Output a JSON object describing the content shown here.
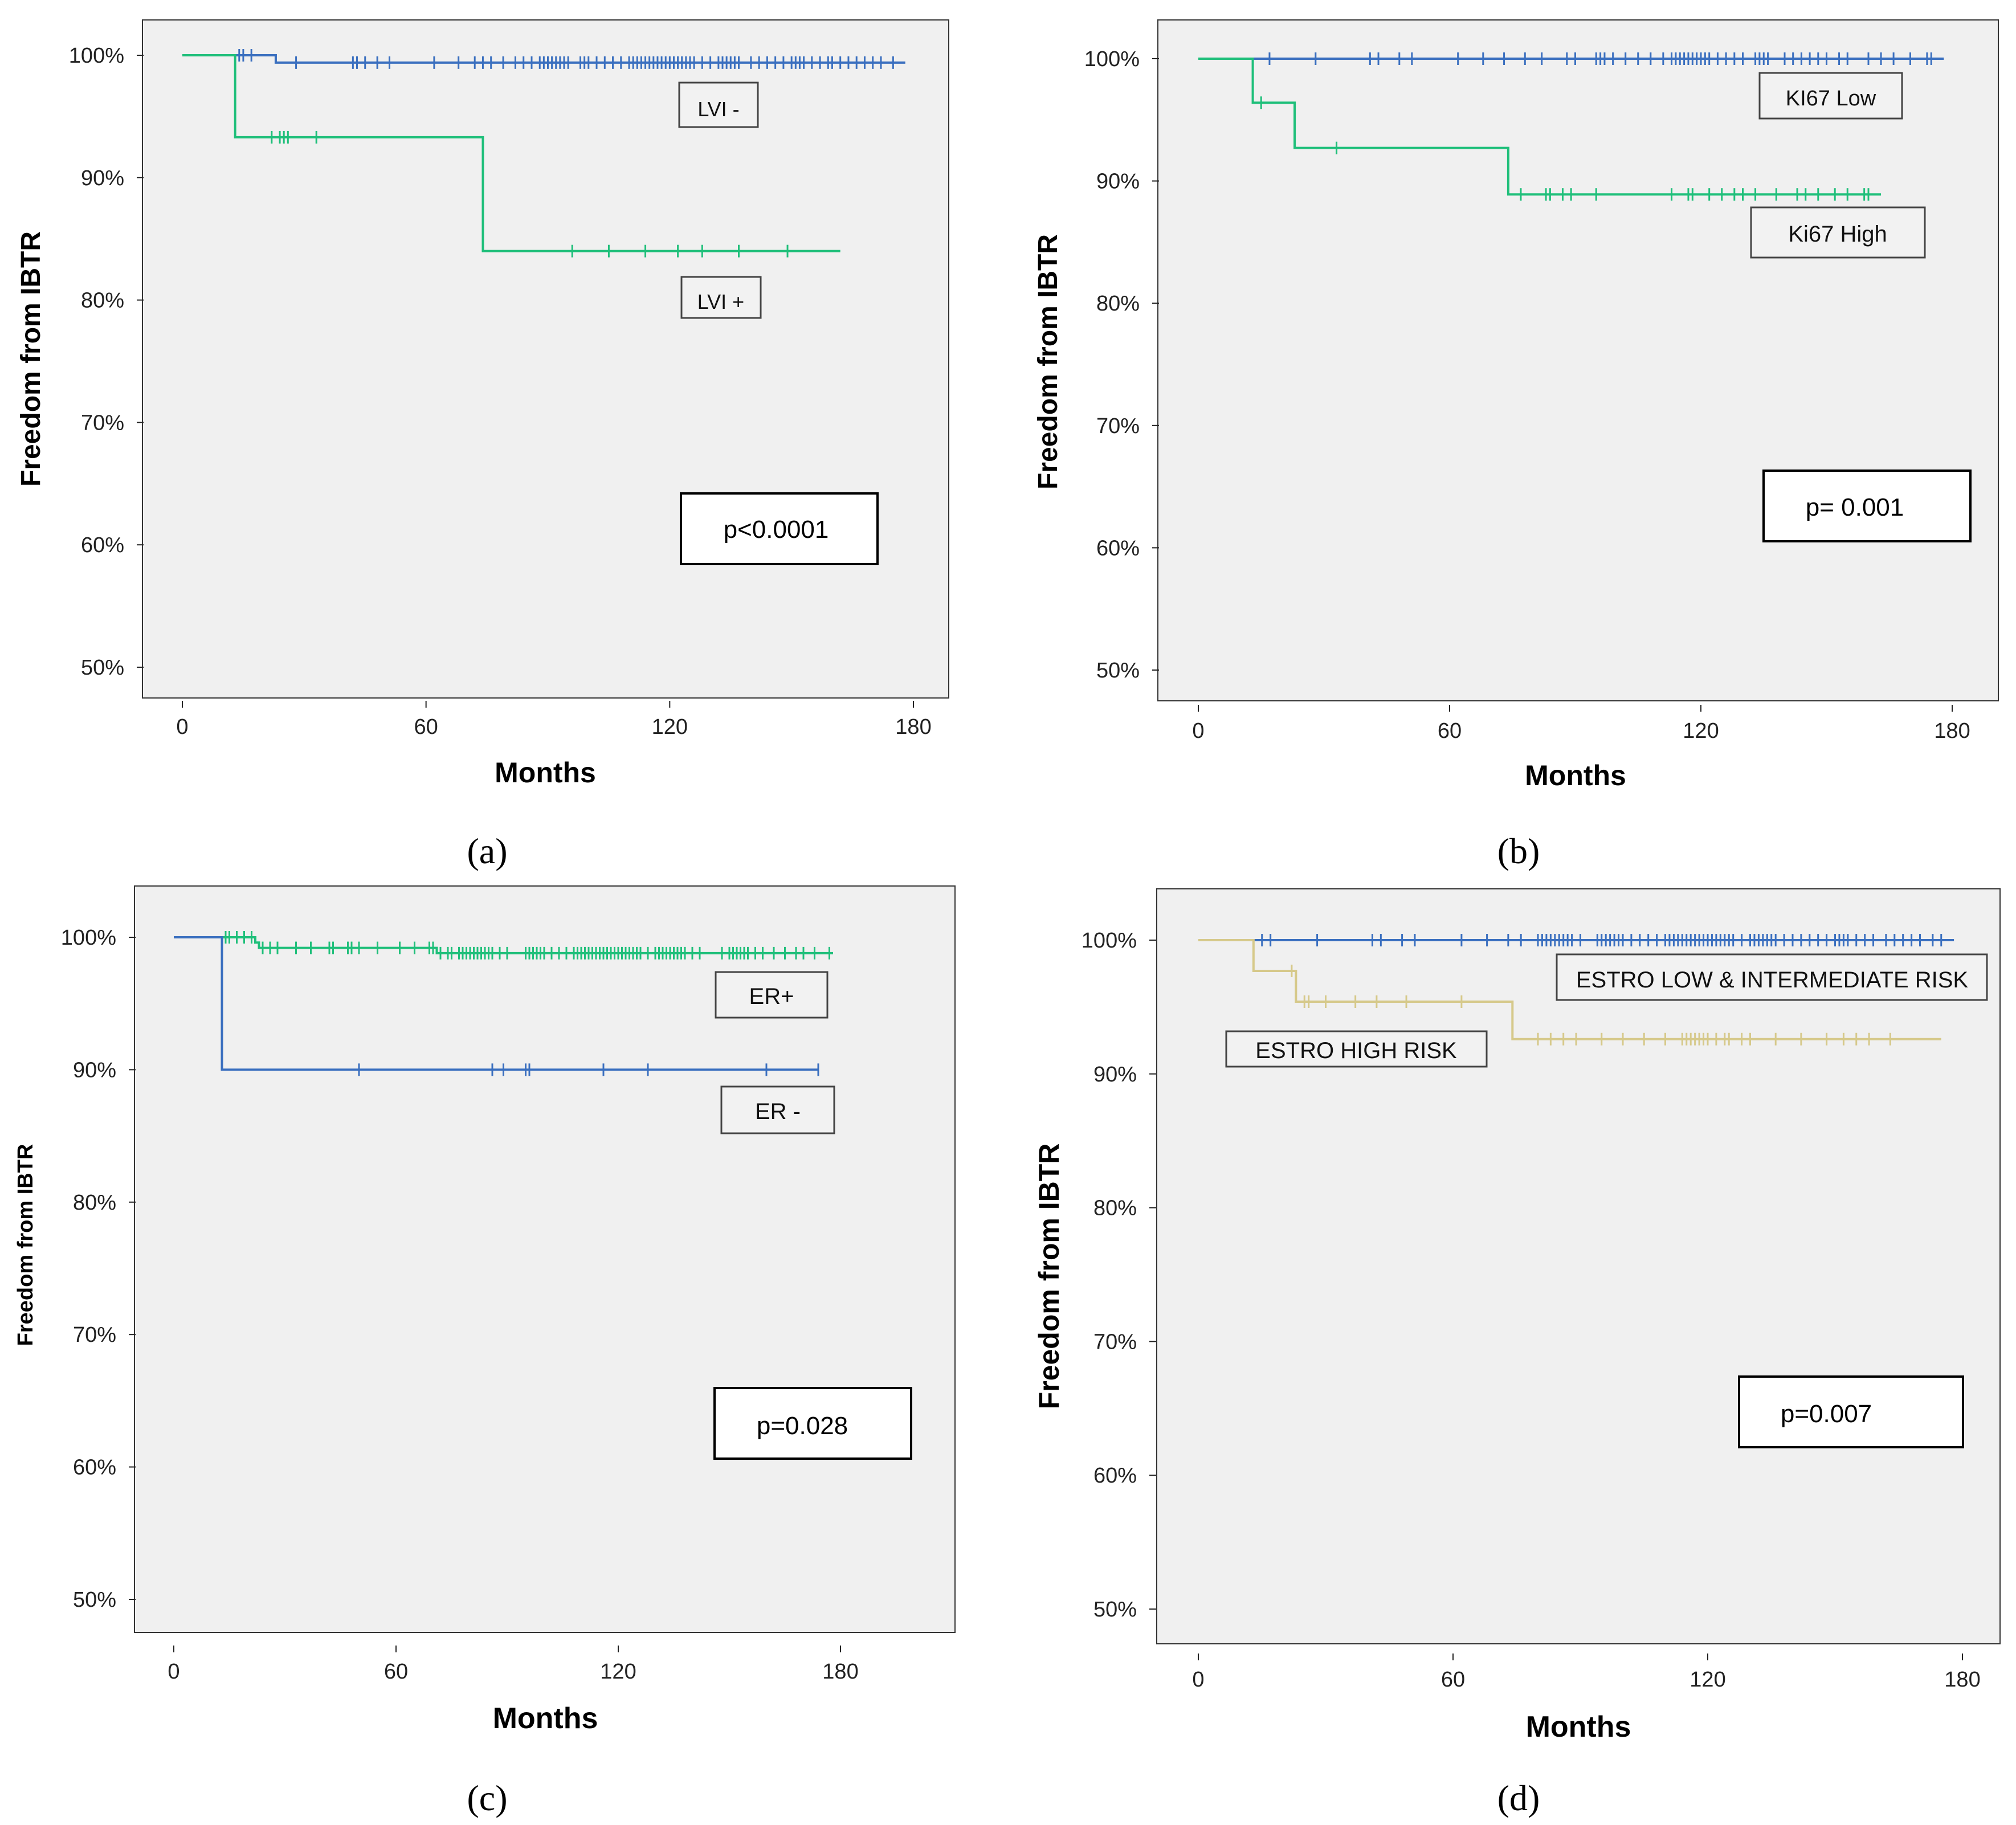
{
  "colors": {
    "plot_background": "#f0f0f0",
    "blue": "#3a6fbf",
    "green": "#1fbf7a",
    "tan": "#d6c98a"
  },
  "chart_data": [
    {
      "id": "a",
      "type": "line",
      "panel_label": "(a)",
      "xlabel": "Months",
      "ylabel": "Freedom from IBTR",
      "xlim": [
        -10,
        190
      ],
      "ylim": [
        48,
        103
      ],
      "xticks": [
        0,
        60,
        120,
        180
      ],
      "yticks": [
        50,
        60,
        70,
        80,
        90,
        100
      ],
      "ytick_suffix": "%",
      "pvalue": "p<0.0001",
      "series": [
        {
          "name": "LVI -",
          "color": "blue",
          "steps": [
            [
              0,
              100
            ],
            [
              23,
              99.4
            ],
            [
              178,
              99.4
            ]
          ],
          "censors": [
            14,
            15,
            17,
            28,
            42,
            43,
            45,
            48,
            51,
            62,
            68,
            72,
            74,
            76,
            79,
            82,
            84,
            86,
            88,
            89,
            90,
            91,
            92,
            93,
            94,
            95,
            98,
            99,
            100,
            102,
            104,
            106,
            108,
            110,
            111,
            112,
            113,
            114,
            115,
            116,
            117,
            118,
            119,
            120,
            121,
            122,
            123,
            124,
            125,
            126,
            128,
            130,
            132,
            133,
            134,
            135,
            136,
            137,
            140,
            142,
            144,
            146,
            148,
            150,
            151,
            152,
            153,
            155,
            157,
            159,
            160,
            162,
            164,
            166,
            168,
            170,
            172,
            175
          ]
        },
        {
          "name": "LVI +",
          "color": "green",
          "steps": [
            [
              0,
              100
            ],
            [
              13,
              93.3
            ],
            [
              74,
              84
            ],
            [
              162,
              84
            ]
          ],
          "censors": [
            22,
            24,
            25,
            26,
            33,
            96,
            105,
            114,
            122,
            128,
            137,
            149
          ]
        }
      ]
    },
    {
      "id": "b",
      "type": "line",
      "panel_label": "(b)",
      "xlabel": "Months",
      "ylabel": "Freedom from IBTR",
      "xlim": [
        -10,
        190
      ],
      "ylim": [
        48,
        103
      ],
      "xticks": [
        0,
        60,
        120,
        180
      ],
      "yticks": [
        50,
        60,
        70,
        80,
        90,
        100
      ],
      "ytick_suffix": "%",
      "pvalue": "p= 0.001",
      "series": [
        {
          "name": "KI67 Low",
          "color": "blue",
          "steps": [
            [
              0,
              100
            ],
            [
              178,
              100
            ]
          ],
          "censors": [
            17,
            28,
            41,
            43,
            48,
            51,
            62,
            68,
            73,
            78,
            82,
            88,
            90,
            95,
            96,
            97,
            99,
            102,
            105,
            108,
            111,
            113,
            114,
            115,
            116,
            117,
            118,
            119,
            120,
            121,
            122,
            124,
            126,
            128,
            130,
            133,
            134,
            135,
            136,
            140,
            142,
            144,
            146,
            148,
            150,
            153,
            155,
            160,
            163,
            166,
            170,
            174,
            175
          ]
        },
        {
          "name": "Ki67 High",
          "color": "green",
          "steps": [
            [
              0,
              100
            ],
            [
              13,
              96.4
            ],
            [
              23,
              92.7
            ],
            [
              74,
              88.9
            ],
            [
              163,
              88.9
            ]
          ],
          "censors": [
            15,
            33,
            77,
            83,
            84,
            87,
            89,
            95,
            113,
            117,
            118,
            122,
            125,
            128,
            130,
            133,
            138,
            143,
            145,
            148,
            152,
            155,
            159,
            160
          ]
        }
      ]
    },
    {
      "id": "c",
      "type": "line",
      "panel_label": "(c)",
      "xlabel": "Months",
      "ylabel": "Freedom from IBTR",
      "xlim": [
        -10,
        211
      ],
      "ylim": [
        48,
        103
      ],
      "xticks": [
        0,
        60,
        120,
        180
      ],
      "yticks": [
        50,
        60,
        70,
        80,
        90,
        100
      ],
      "ytick_suffix": "%",
      "pvalue": "p=0.028",
      "series": [
        {
          "name": "ER+",
          "color": "green",
          "steps": [
            [
              0,
              100
            ],
            [
              22,
              99.6
            ],
            [
              23,
              99.2
            ],
            [
              71,
              98.8
            ],
            [
              178,
              98.8
            ]
          ],
          "censors": [
            14,
            15,
            17,
            19,
            21,
            24,
            26,
            28,
            33,
            37,
            42,
            43,
            47,
            48,
            50,
            55,
            61,
            65,
            69,
            70,
            72,
            74,
            75,
            77,
            78,
            79,
            80,
            81,
            82,
            83,
            84,
            85,
            86,
            88,
            90,
            95,
            96,
            97,
            98,
            99,
            100,
            102,
            104,
            106,
            108,
            109,
            110,
            111,
            112,
            113,
            114,
            115,
            116,
            117,
            118,
            119,
            120,
            121,
            122,
            123,
            124,
            125,
            126,
            128,
            130,
            131,
            132,
            133,
            134,
            135,
            136,
            137,
            138,
            140,
            142,
            148,
            150,
            151,
            152,
            153,
            154,
            155,
            157,
            159,
            162,
            165,
            168,
            170,
            173,
            177
          ]
        },
        {
          "name": "ER -",
          "color": "blue",
          "steps": [
            [
              0,
              100
            ],
            [
              13,
              90
            ],
            [
              174,
              90
            ]
          ],
          "censors": [
            50,
            86,
            89,
            95,
            96,
            116,
            128,
            160,
            174
          ]
        }
      ]
    },
    {
      "id": "d",
      "type": "line",
      "panel_label": "(d)",
      "xlabel": "Months",
      "ylabel": "Freedom from IBTR",
      "xlim": [
        -10,
        190
      ],
      "ylim": [
        48,
        103
      ],
      "xticks": [
        0,
        60,
        120,
        180
      ],
      "yticks": [
        50,
        60,
        70,
        80,
        90,
        100
      ],
      "ytick_suffix": "%",
      "pvalue": "p=0.007",
      "series": [
        {
          "name": "ESTRO LOW & INTERMEDIATE RISK",
          "color": "blue",
          "steps": [
            [
              0,
              100
            ],
            [
              178,
              100
            ]
          ],
          "censors": [
            15,
            17,
            28,
            41,
            43,
            48,
            51,
            62,
            68,
            73,
            76,
            80,
            81,
            82,
            83,
            84,
            85,
            86,
            87,
            88,
            90,
            94,
            95,
            96,
            97,
            98,
            99,
            100,
            102,
            104,
            106,
            108,
            110,
            111,
            112,
            113,
            114,
            115,
            116,
            117,
            118,
            119,
            120,
            121,
            122,
            123,
            124,
            125,
            126,
            128,
            130,
            131,
            132,
            133,
            134,
            135,
            136,
            138,
            140,
            142,
            144,
            146,
            148,
            150,
            151,
            152,
            153,
            155,
            157,
            159,
            162,
            164,
            166,
            168,
            170,
            173,
            175
          ]
        },
        {
          "name": "ESTRO HIGH RISK",
          "color": "tan",
          "steps": [
            [
              0,
              100
            ],
            [
              13,
              97.7
            ],
            [
              23,
              95.4
            ],
            [
              74,
              92.6
            ],
            [
              175,
              92.6
            ]
          ],
          "censors": [
            22,
            25,
            26,
            30,
            37,
            42,
            49,
            62,
            80,
            83,
            86,
            89,
            95,
            100,
            105,
            110,
            114,
            115,
            116,
            117,
            118,
            119,
            120,
            122,
            124,
            125,
            128,
            130,
            136,
            142,
            148,
            152,
            155,
            158,
            163
          ]
        }
      ]
    }
  ]
}
